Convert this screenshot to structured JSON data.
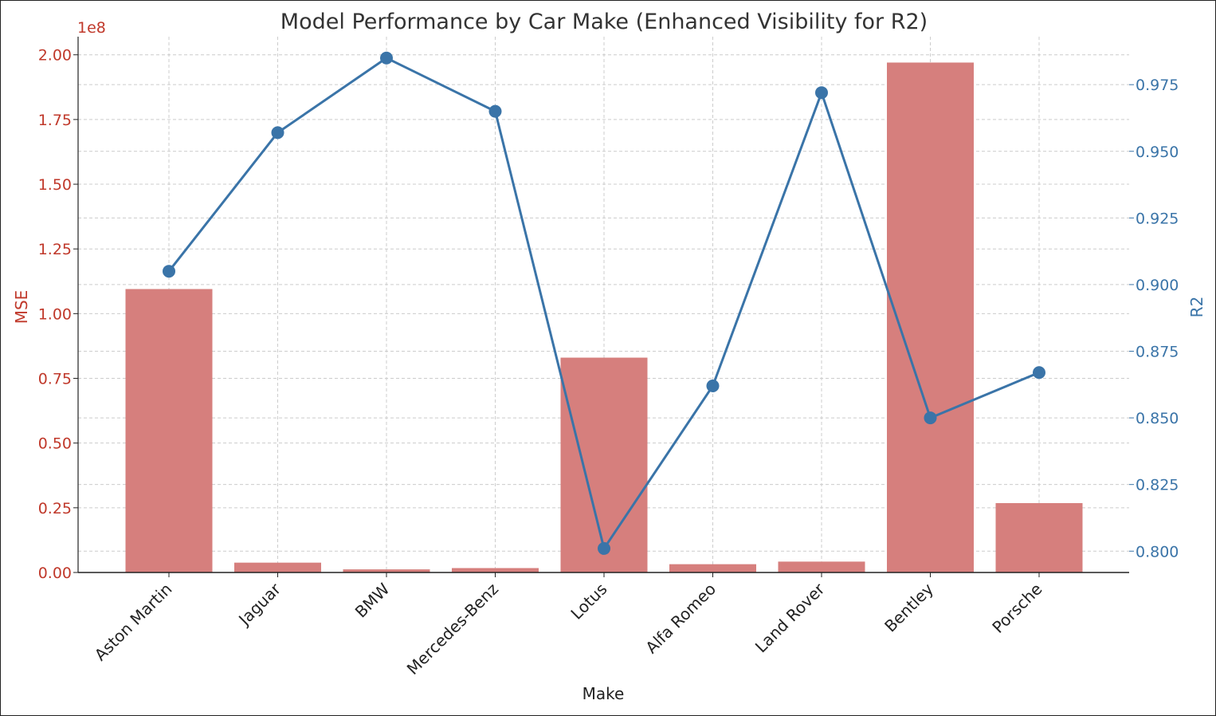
{
  "chart_data": {
    "type": "bar",
    "title": "Model Performance by Car Make (Enhanced Visibility for R2)",
    "xlabel": "Make",
    "ylabel_left": "MSE",
    "ylabel_right": "R2",
    "left_axis_offset": "1e8",
    "categories": [
      "Aston Martin",
      "Jaguar",
      "BMW",
      "Mercedes-Benz",
      "Lotus",
      "Alfa Romeo",
      "Land Rover",
      "Bentley",
      "Porsche"
    ],
    "series": [
      {
        "name": "MSE",
        "kind": "bar",
        "axis": "left",
        "color": "#d67f7d",
        "values": [
          109500000,
          3800000,
          1200000,
          1700000,
          83000000,
          3200000,
          4200000,
          197000000,
          26800000
        ]
      },
      {
        "name": "R2",
        "kind": "line",
        "axis": "right",
        "color": "#3a74a8",
        "values": [
          0.905,
          0.957,
          0.985,
          0.965,
          0.801,
          0.862,
          0.972,
          0.85,
          0.867
        ]
      }
    ],
    "ylim_left": [
      0,
      207000000
    ],
    "ylim_right": [
      0.792,
      0.993
    ],
    "left_ticks": [
      "0.00",
      "0.25",
      "0.50",
      "0.75",
      "1.00",
      "1.25",
      "1.50",
      "1.75",
      "2.00"
    ],
    "left_tick_values": [
      0,
      25000000,
      50000000,
      75000000,
      100000000,
      125000000,
      150000000,
      175000000,
      200000000
    ],
    "right_ticks": [
      "0.800",
      "0.825",
      "0.850",
      "0.875",
      "0.900",
      "0.925",
      "0.950",
      "0.975"
    ],
    "right_tick_values": [
      0.8,
      0.825,
      0.85,
      0.875,
      0.9,
      0.925,
      0.95,
      0.975
    ],
    "grid": true,
    "legend": "none"
  }
}
